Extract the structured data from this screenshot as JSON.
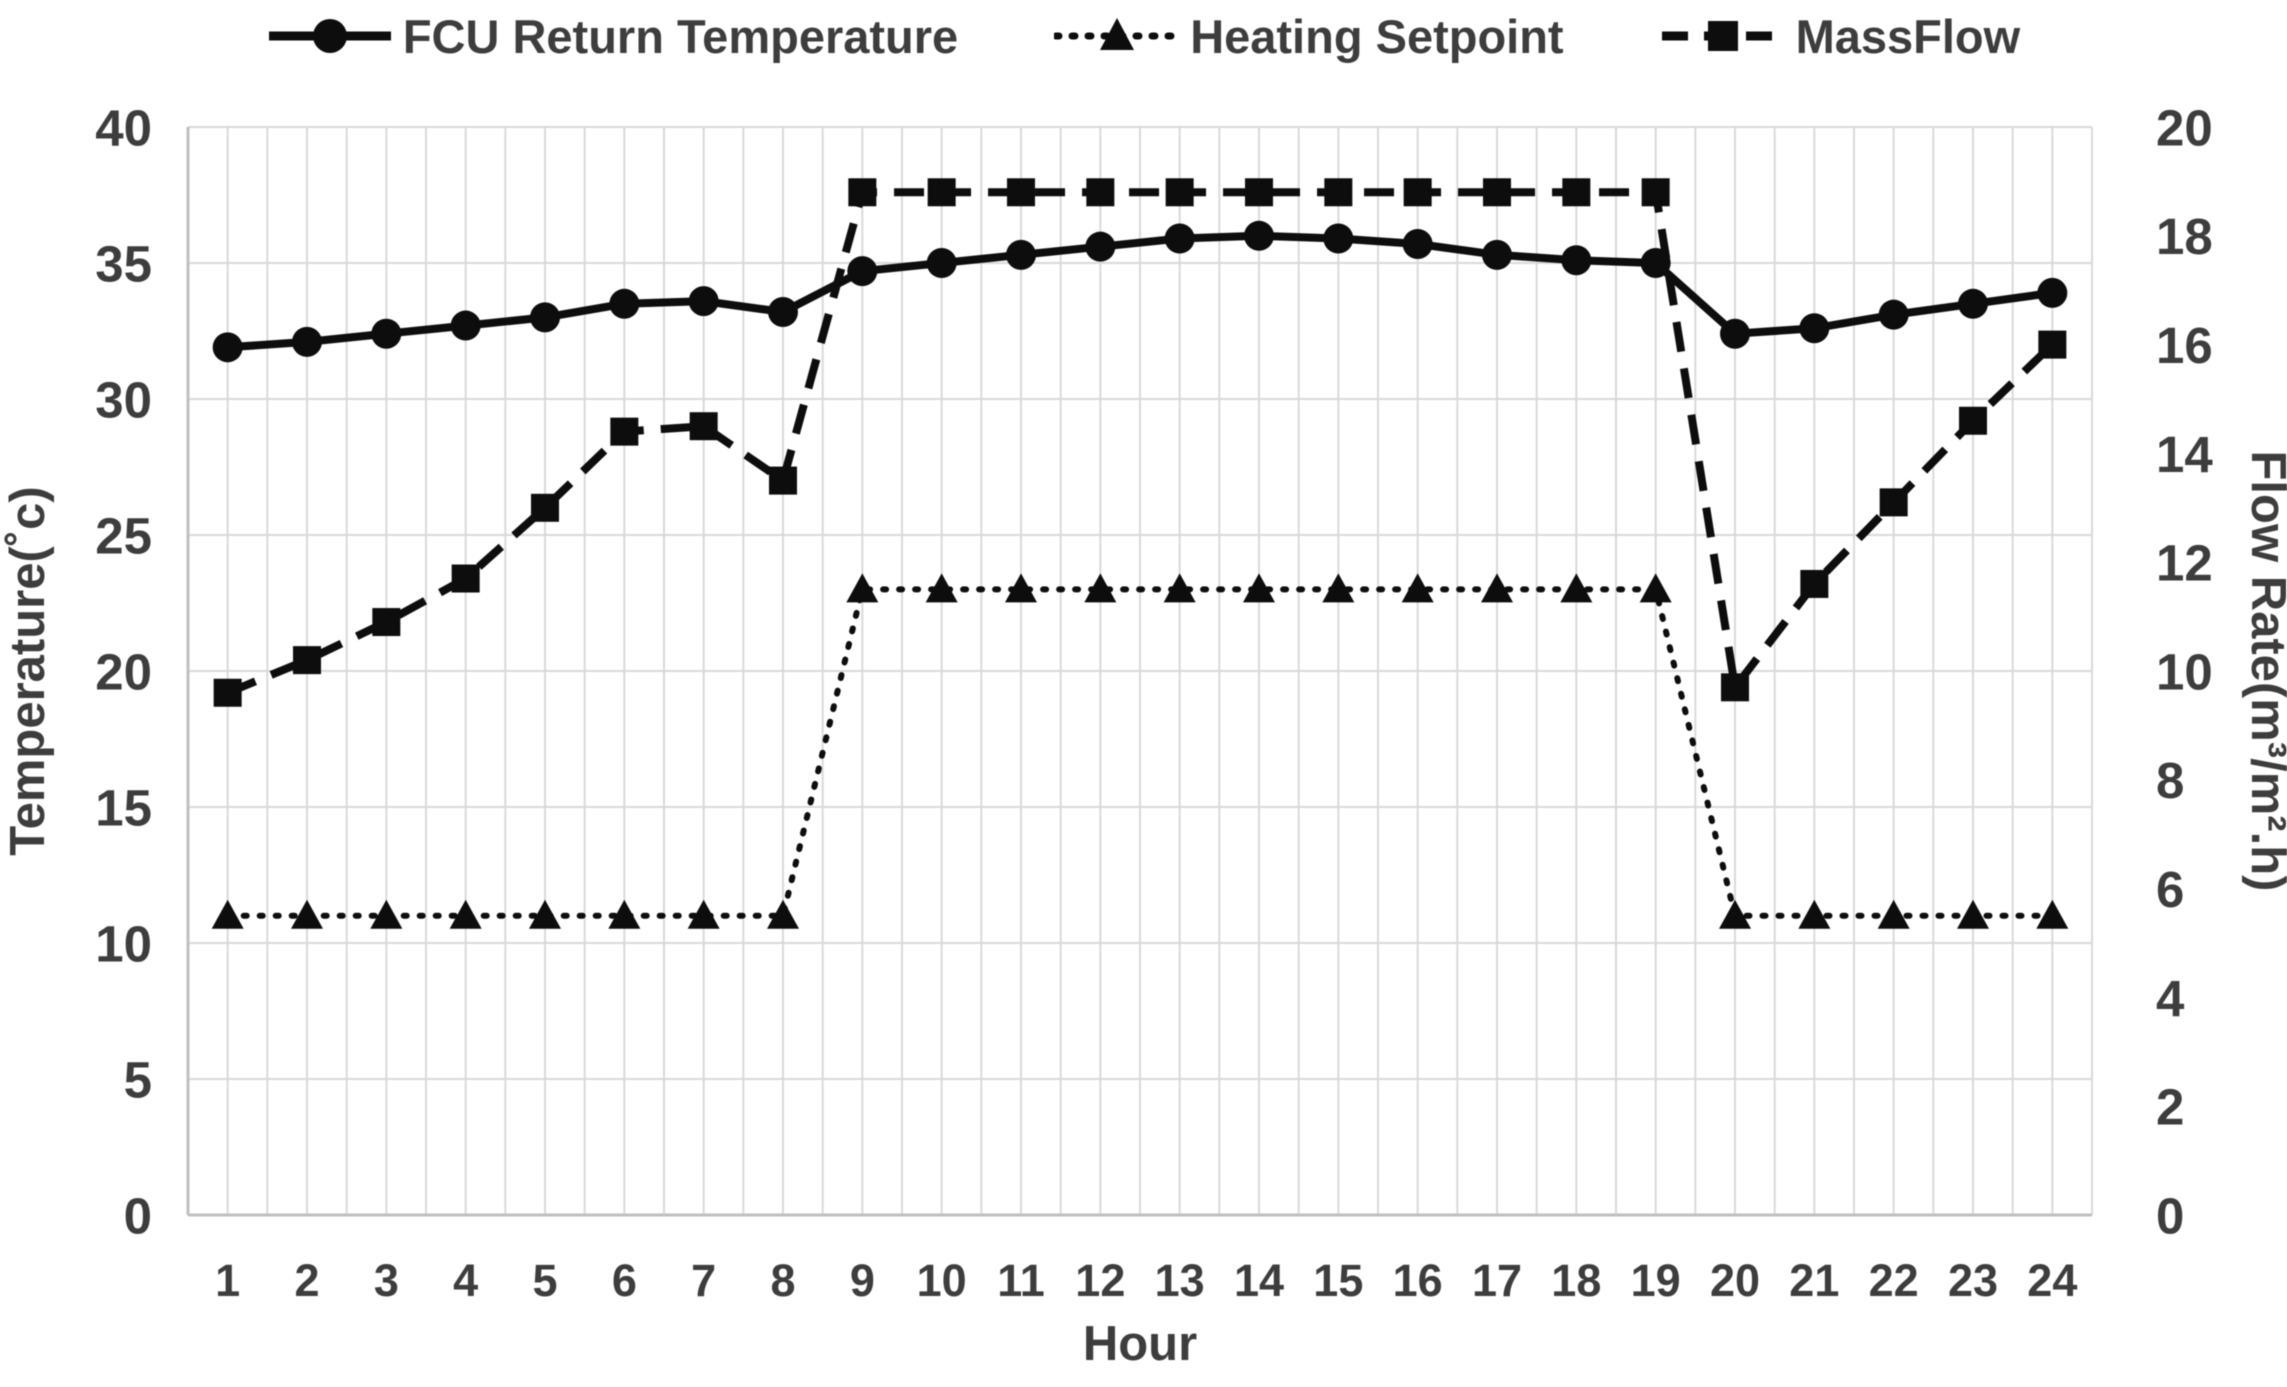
{
  "colors": {
    "series": "#0d0d0d",
    "grid": "#d9d9d9",
    "axis_line": "#bfbfbf",
    "text": "#3d3d3d",
    "background": "#ffffff"
  },
  "legend": {
    "position": "top",
    "items": [
      "FCU Return Temperature",
      "Heating Setpoint",
      "MassFlow"
    ]
  },
  "chart_data": {
    "type": "line",
    "title": "",
    "xlabel": "Hour",
    "ylabel_left": "Temperature(˚c)",
    "ylabel_right": "Flow Rate(m³/m².h)",
    "x": [
      1,
      2,
      3,
      4,
      5,
      6,
      7,
      8,
      9,
      10,
      11,
      12,
      13,
      14,
      15,
      16,
      17,
      18,
      19,
      20,
      21,
      22,
      23,
      24
    ],
    "xticks": [
      1,
      2,
      3,
      4,
      5,
      6,
      7,
      8,
      9,
      10,
      11,
      12,
      13,
      14,
      15,
      16,
      17,
      18,
      19,
      20,
      21,
      22,
      23,
      24
    ],
    "xlim": [
      0.5,
      24.5
    ],
    "ylim_left": [
      0,
      40
    ],
    "yticks_left": [
      0,
      5,
      10,
      15,
      20,
      25,
      30,
      35,
      40
    ],
    "ylim_right": [
      0,
      20
    ],
    "yticks_right": [
      0,
      2,
      4,
      6,
      8,
      10,
      12,
      14,
      16,
      18,
      20
    ],
    "grid": {
      "vertical_minor_step": 0.5,
      "horizontal_lines_at": [
        0,
        5,
        10,
        15,
        20,
        25,
        30,
        35,
        40
      ]
    },
    "series": [
      {
        "name": "FCU Return Temperature",
        "axis": "left",
        "line_style": "solid",
        "marker": "circle",
        "values": [
          31.9,
          32.1,
          32.4,
          32.7,
          33.0,
          33.5,
          33.6,
          33.2,
          34.7,
          35.0,
          35.3,
          35.6,
          35.9,
          36.0,
          35.9,
          35.7,
          35.3,
          35.1,
          35.0,
          32.4,
          32.6,
          33.1,
          33.5,
          33.9
        ]
      },
      {
        "name": "Heating Setpoint",
        "axis": "left",
        "line_style": "dotted",
        "marker": "triangle",
        "values": [
          11,
          11,
          11,
          11,
          11,
          11,
          11,
          11,
          23,
          23,
          23,
          23,
          23,
          23,
          23,
          23,
          23,
          23,
          23,
          11,
          11,
          11,
          11,
          11
        ]
      },
      {
        "name": "MassFlow",
        "axis": "right",
        "line_style": "dashed",
        "marker": "square",
        "values": [
          9.6,
          10.2,
          10.9,
          11.7,
          13.0,
          14.4,
          14.5,
          13.5,
          18.8,
          18.8,
          18.8,
          18.8,
          18.8,
          18.8,
          18.8,
          18.8,
          18.8,
          18.8,
          18.8,
          9.7,
          11.6,
          13.1,
          14.6,
          16.0
        ]
      }
    ]
  }
}
